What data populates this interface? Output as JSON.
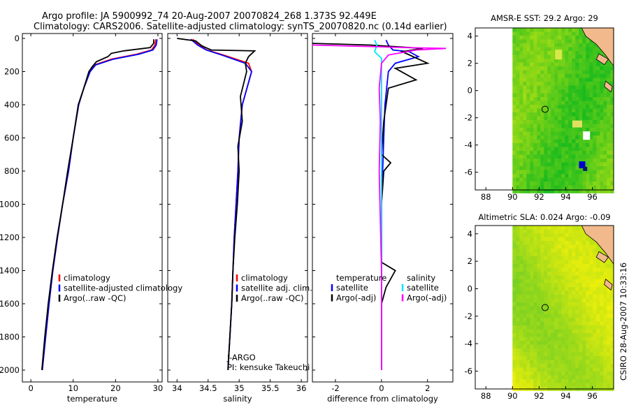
{
  "title_line1": "Argo profile: JA 5900992_74 20-Aug-2007 20070824_268 1.373S 92.449E",
  "title_line2": "Climatology: CARS2006. Satellite-adjusted climatology: synTS_20070820.nc (0.14d earlier)",
  "side_stamp": "CSIRO 28-Aug-2007 10:33:16",
  "chart_data": [
    {
      "type": "line",
      "id": "temperature",
      "xlabel": "temperature",
      "xlim": [
        -2,
        31
      ],
      "ylim": [
        0,
        2080
      ],
      "xticks": [
        0,
        10,
        20,
        30
      ],
      "xtick_labels": [
        "0",
        "10",
        "20",
        "30"
      ],
      "yticks": [
        0,
        200,
        400,
        600,
        800,
        1000,
        1200,
        1400,
        1600,
        1800,
        2000
      ],
      "ytick_labels": [
        "0",
        "200",
        "400",
        "600",
        "800",
        "1000",
        "1200",
        "1400",
        "1600",
        "1800",
        "2000"
      ],
      "legend": [
        "climatology",
        "satellite-adjusted climatology",
        "Argo(..raw -QC)"
      ],
      "series": [
        {
          "name": "climatology",
          "color": "#ff0000",
          "points": [
            [
              29.5,
              5
            ],
            [
              29.3,
              40
            ],
            [
              28.5,
              70
            ],
            [
              25,
              95
            ],
            [
              19,
              125
            ],
            [
              15,
              160
            ],
            [
              13.8,
              200
            ],
            [
              12.5,
              300
            ],
            [
              11.3,
              400
            ],
            [
              10,
              600
            ],
            [
              8.9,
              800
            ],
            [
              7.5,
              1000
            ],
            [
              6.3,
              1200
            ],
            [
              5.2,
              1400
            ],
            [
              4.3,
              1600
            ],
            [
              3.5,
              1800
            ],
            [
              2.7,
              2000
            ]
          ]
        },
        {
          "name": "satellite-adjusted climatology",
          "color": "#0000ff",
          "points": [
            [
              29.8,
              5
            ],
            [
              29.6,
              40
            ],
            [
              28.8,
              70
            ],
            [
              25.5,
              95
            ],
            [
              19.5,
              125
            ],
            [
              15.3,
              160
            ],
            [
              14,
              200
            ],
            [
              12.5,
              300
            ],
            [
              11.3,
              400
            ],
            [
              10,
              600
            ],
            [
              8.9,
              800
            ],
            [
              7.5,
              1000
            ],
            [
              6.3,
              1200
            ],
            [
              5.2,
              1400
            ],
            [
              4.3,
              1600
            ],
            [
              3.5,
              1800
            ],
            [
              2.7,
              2000
            ]
          ]
        },
        {
          "name": "Argo(..raw -QC)",
          "color": "#000000",
          "points": [
            [
              29.0,
              5
            ],
            [
              29.0,
              30
            ],
            [
              28.2,
              55
            ],
            [
              22,
              75
            ],
            [
              19,
              90
            ],
            [
              18.2,
              110
            ],
            [
              15.5,
              140
            ],
            [
              14.5,
              170
            ],
            [
              13.7,
              200
            ],
            [
              12.5,
              300
            ],
            [
              11.2,
              400
            ],
            [
              10,
              600
            ],
            [
              8.7,
              800
            ],
            [
              7.5,
              1000
            ],
            [
              6.2,
              1200
            ],
            [
              5.1,
              1400
            ],
            [
              4.1,
              1600
            ],
            [
              3.3,
              1800
            ],
            [
              2.6,
              2000
            ]
          ]
        }
      ]
    },
    {
      "type": "line",
      "id": "salinity",
      "xlabel": "salinity",
      "xlim": [
        33.85,
        36.1
      ],
      "ylim": [
        0,
        2080
      ],
      "xticks": [
        34,
        34.5,
        35,
        35.5,
        36
      ],
      "xtick_labels": [
        "34",
        "34.5",
        "35",
        "35.5",
        "36"
      ],
      "legend": [
        "climatology",
        "satellite adj. clim.",
        "Argo(..raw -QC)"
      ],
      "annotation": [
        "J-ARGO",
        "PI: kensuke Takeuchi"
      ],
      "series": [
        {
          "name": "climatology",
          "color": "#ff0000",
          "points": [
            [
              34.25,
              5
            ],
            [
              34.35,
              40
            ],
            [
              34.48,
              70
            ],
            [
              34.75,
              100
            ],
            [
              35.15,
              150
            ],
            [
              35.2,
              200
            ],
            [
              35.05,
              400
            ],
            [
              35.0,
              600
            ],
            [
              34.98,
              800
            ],
            [
              34.95,
              1000
            ],
            [
              34.92,
              1200
            ],
            [
              34.9,
              1400
            ],
            [
              34.88,
              1600
            ],
            [
              34.85,
              1800
            ],
            [
              34.82,
              2000
            ]
          ]
        },
        {
          "name": "satellite adj. clim.",
          "color": "#0000ff",
          "points": [
            [
              34.22,
              5
            ],
            [
              34.33,
              40
            ],
            [
              34.47,
              70
            ],
            [
              34.72,
              100
            ],
            [
              35.1,
              150
            ],
            [
              35.2,
              200
            ],
            [
              35.05,
              400
            ],
            [
              35.0,
              600
            ],
            [
              34.98,
              800
            ],
            [
              34.95,
              1000
            ],
            [
              34.92,
              1200
            ],
            [
              34.9,
              1400
            ],
            [
              34.88,
              1600
            ],
            [
              34.85,
              1800
            ],
            [
              34.82,
              1990
            ]
          ]
        },
        {
          "name": "Argo(..raw -QC)",
          "color": "#000000",
          "points": [
            [
              34.0,
              0
            ],
            [
              34.3,
              15
            ],
            [
              34.4,
              45
            ],
            [
              34.55,
              70
            ],
            [
              35.25,
              75
            ],
            [
              35.15,
              110
            ],
            [
              35.1,
              150
            ],
            [
              35.12,
              200
            ],
            [
              35.02,
              350
            ],
            [
              35.05,
              500
            ],
            [
              34.98,
              650
            ],
            [
              35.0,
              800
            ],
            [
              34.97,
              1000
            ],
            [
              34.93,
              1200
            ],
            [
              34.9,
              1400
            ],
            [
              34.88,
              1600
            ],
            [
              34.85,
              1800
            ],
            [
              34.82,
              2000
            ]
          ]
        }
      ]
    },
    {
      "type": "line",
      "id": "difference",
      "xlabel": "difference from climatology",
      "xlim": [
        -3,
        3.1
      ],
      "ylim": [
        0,
        2080
      ],
      "xticks": [
        -2,
        0,
        2
      ],
      "xtick_labels": [
        "-2",
        "0",
        "2"
      ],
      "legend_title_left": "temperature",
      "legend_title_right": "salinity",
      "legend_left": [
        "satellite",
        "Argo(-adj)"
      ],
      "legend_right": [
        "satellite",
        "Argo(-adj)"
      ],
      "series": [
        {
          "name": "temperature satellite",
          "color": "#0000ff",
          "points": [
            [
              0.2,
              10
            ],
            [
              0.3,
              40
            ],
            [
              0.5,
              70
            ],
            [
              1.2,
              80
            ],
            [
              1.6,
              110
            ],
            [
              0.6,
              150
            ],
            [
              0.3,
              200
            ],
            [
              0.15,
              400
            ],
            [
              0.1,
              600
            ],
            [
              0.05,
              800
            ],
            [
              0.0,
              1000
            ],
            [
              0.0,
              1400
            ],
            [
              0.0,
              2000
            ]
          ]
        },
        {
          "name": "temperature Argo(-adj)",
          "color": "#000000",
          "points": [
            [
              -3,
              30
            ],
            [
              -0.5,
              40
            ],
            [
              1.8,
              60
            ],
            [
              0.9,
              80
            ],
            [
              2.0,
              150
            ],
            [
              0.6,
              180
            ],
            [
              1.5,
              250
            ],
            [
              0.3,
              300
            ],
            [
              0.1,
              500
            ],
            [
              0.0,
              700
            ],
            [
              0.4,
              750
            ],
            [
              0.1,
              800
            ],
            [
              0.0,
              1000
            ],
            [
              0.0,
              1350
            ],
            [
              0.6,
              1400
            ],
            [
              0.2,
              1500
            ],
            [
              0.0,
              1600
            ],
            [
              0.0,
              2000
            ]
          ]
        },
        {
          "name": "salinity satellite",
          "color": "#00e5ff",
          "points": [
            [
              -0.3,
              10
            ],
            [
              -0.2,
              40
            ],
            [
              -0.3,
              80
            ],
            [
              0.0,
              120
            ],
            [
              0.0,
              400
            ],
            [
              0.0,
              1000
            ],
            [
              0.0,
              1600
            ],
            [
              0.0,
              2000
            ]
          ]
        },
        {
          "name": "salinity Argo(-adj)",
          "color": "#ff00ff",
          "points": [
            [
              -3,
              40
            ],
            [
              -0.2,
              50
            ],
            [
              1.0,
              55
            ],
            [
              2.8,
              60
            ],
            [
              1.5,
              70
            ],
            [
              0.3,
              100
            ],
            [
              0.0,
              150
            ],
            [
              -0.1,
              300
            ],
            [
              -0.05,
              500
            ],
            [
              -0.1,
              800
            ],
            [
              -0.05,
              1100
            ],
            [
              0.0,
              1400
            ],
            [
              0.0,
              2000
            ]
          ]
        }
      ]
    },
    {
      "type": "heatmap",
      "id": "sst-map",
      "title": "AMSR-E SST: 29.2 Argo: 29",
      "xlim": [
        87.2,
        97.6
      ],
      "ylim": [
        -7.3,
        4.6
      ],
      "xticks": [
        88,
        90,
        92,
        94,
        96
      ],
      "xtick_labels": [
        "88",
        "90",
        "92",
        "94",
        "96"
      ],
      "yticks": [
        4,
        2,
        0,
        -2,
        -4,
        -6
      ],
      "ytick_labels": [
        "4",
        "2",
        "0",
        "-2",
        "-4",
        "-6"
      ],
      "argo_position": [
        92.449,
        -1.373
      ]
    },
    {
      "type": "heatmap",
      "id": "sla-map",
      "title": "Altimetric SLA: 0.024 Argo: -0.09",
      "xlim": [
        87.2,
        97.6
      ],
      "ylim": [
        -7.3,
        4.6
      ],
      "xticks": [
        88,
        90,
        92,
        94,
        96
      ],
      "xtick_labels": [
        "88",
        "90",
        "92",
        "94",
        "96"
      ],
      "yticks": [
        4,
        2,
        0,
        -2,
        -4,
        -6
      ],
      "ytick_labels": [
        "4",
        "2",
        "0",
        "-2",
        "-4",
        "-6"
      ],
      "argo_position": [
        92.449,
        -1.373
      ]
    }
  ]
}
